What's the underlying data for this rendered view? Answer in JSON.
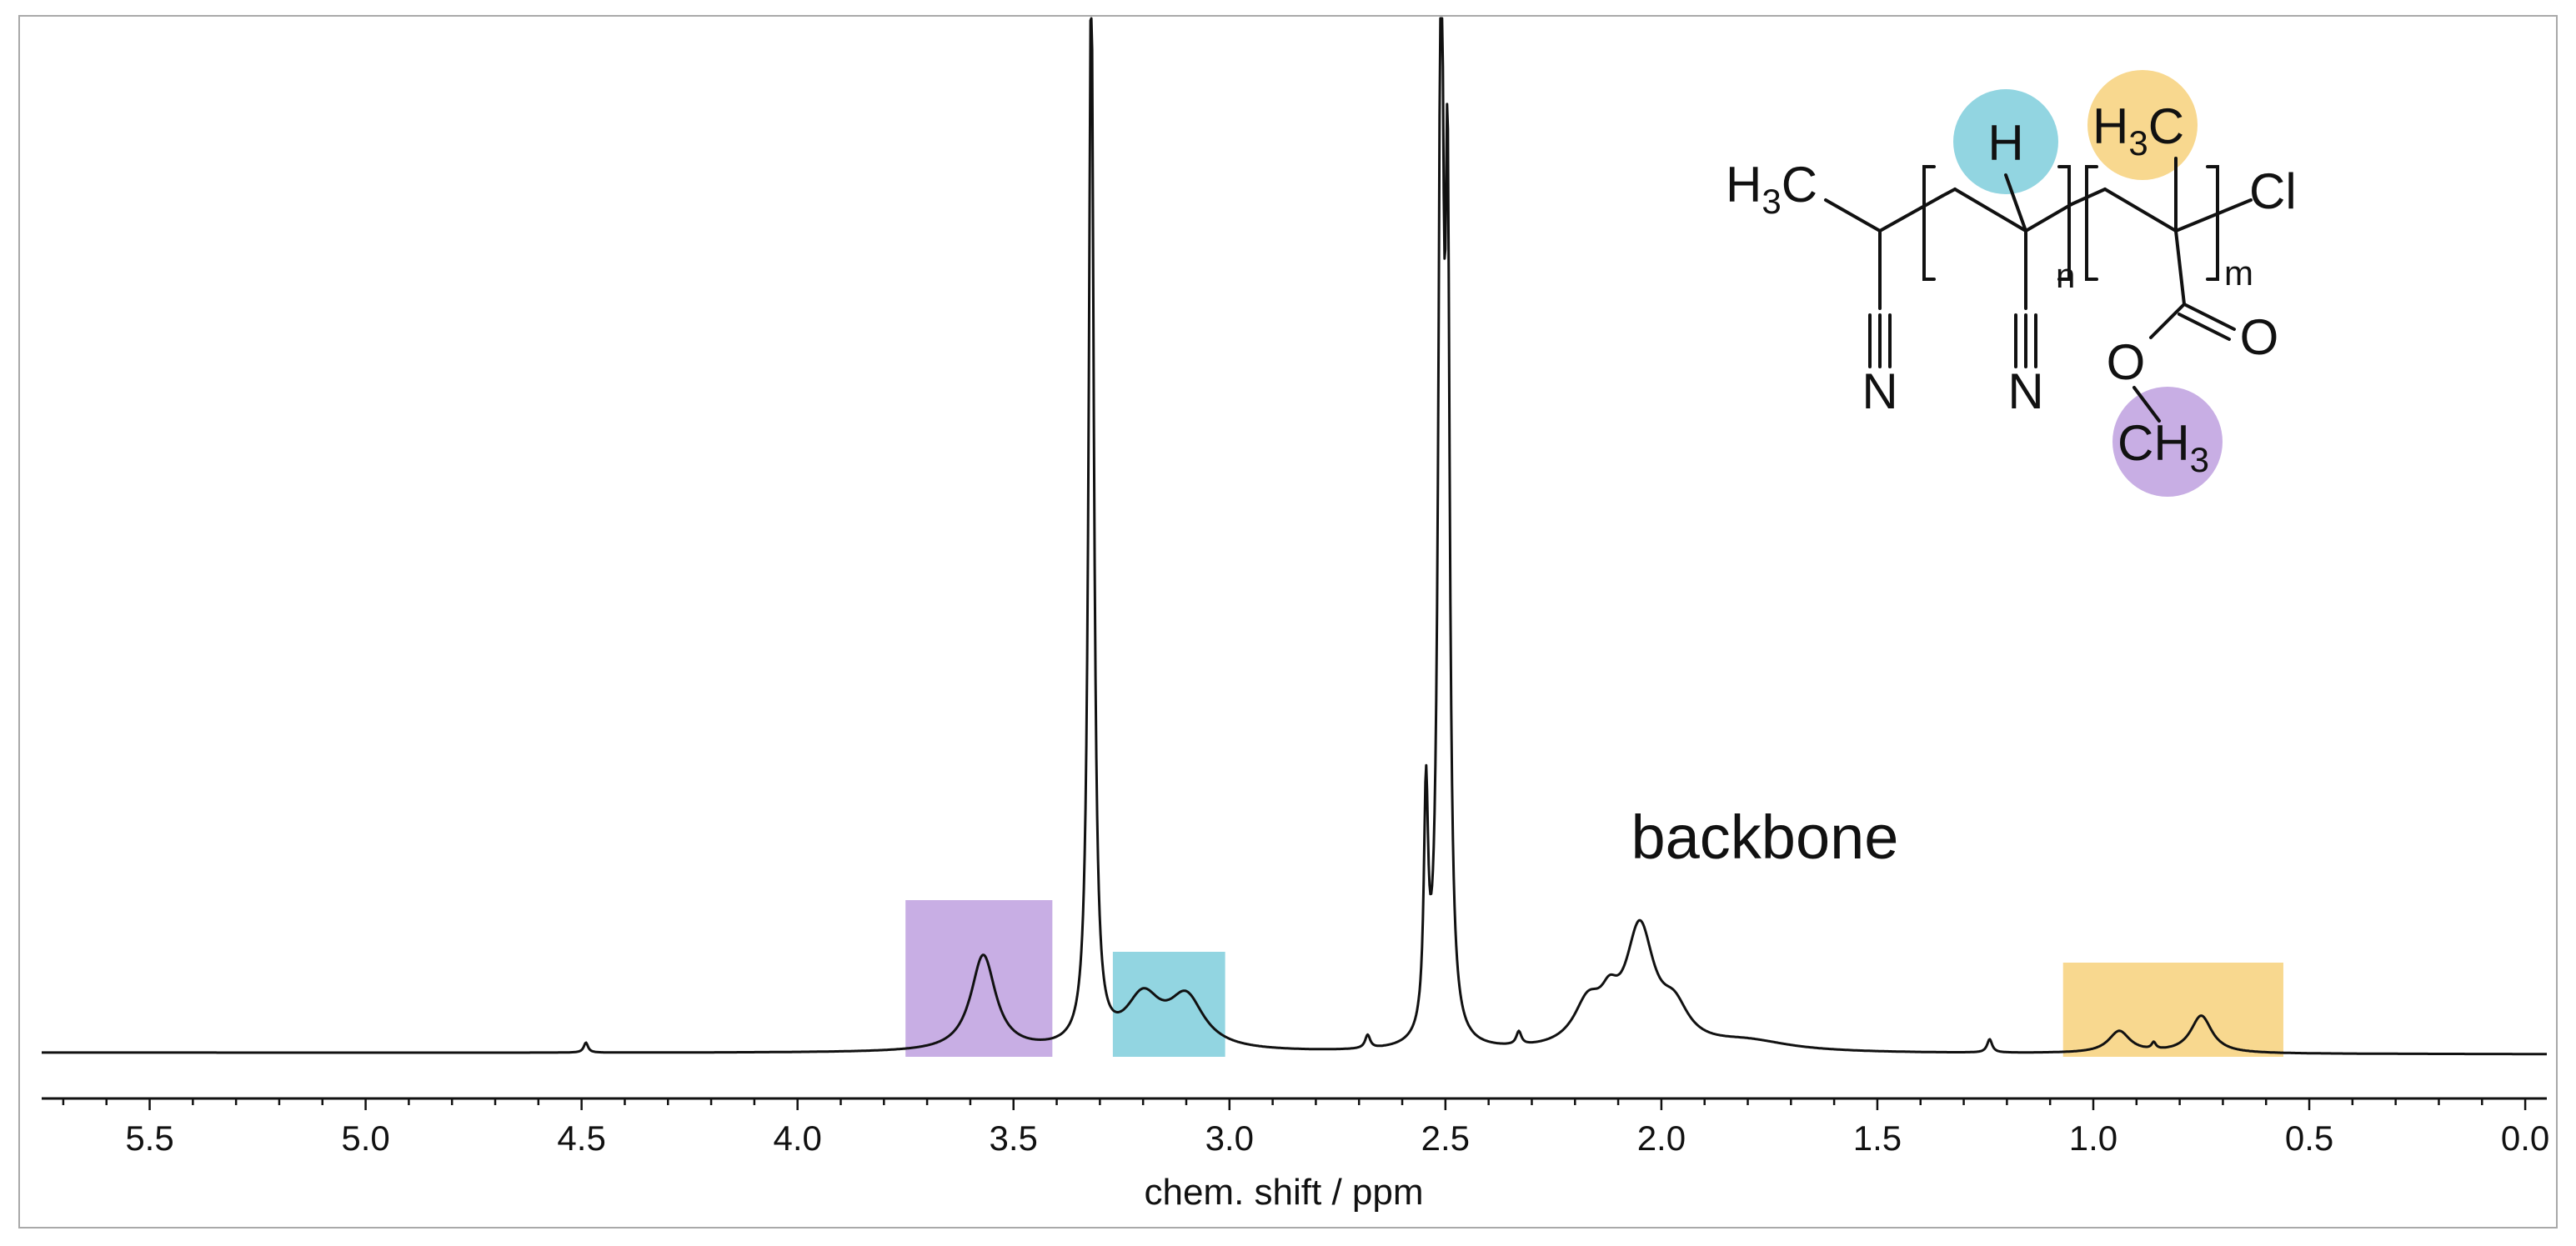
{
  "chart_data": {
    "type": "line",
    "x_axis": {
      "label": "chem. shift / ppm",
      "range": [
        5.75,
        -0.05
      ],
      "reversed": true,
      "ticks": [
        "5.5",
        "5.0",
        "4.5",
        "4.0",
        "3.5",
        "3.0",
        "2.5",
        "2.0",
        "1.5",
        "1.0",
        "0.5",
        "0.0"
      ],
      "minor_step": 0.1
    },
    "y_axis": {
      "visible": false,
      "range": [
        0,
        1
      ]
    },
    "grid": false,
    "series": [
      {
        "baseline": 0.0,
        "peaks": [
          {
            "center": 4.49,
            "height": 0.012,
            "width": 0.006
          },
          {
            "center": 3.57,
            "height": 0.115,
            "width": 0.035
          },
          {
            "center": 3.32,
            "height": 1.3,
            "width": 0.007
          },
          {
            "center": 3.2,
            "height": 0.06,
            "width": 0.05
          },
          {
            "center": 3.1,
            "height": 0.06,
            "width": 0.05
          },
          {
            "center": 2.68,
            "height": 0.016,
            "width": 0.007
          },
          {
            "center": 2.545,
            "height": 0.28,
            "width": 0.006
          },
          {
            "center": 2.51,
            "height": 1.3,
            "width": 0.007
          },
          {
            "center": 2.495,
            "height": 0.9,
            "width": 0.006
          },
          {
            "center": 2.33,
            "height": 0.016,
            "width": 0.007
          },
          {
            "center": 2.17,
            "height": 0.05,
            "width": 0.04
          },
          {
            "center": 2.12,
            "height": 0.035,
            "width": 0.025
          },
          {
            "center": 2.05,
            "height": 0.14,
            "width": 0.04
          },
          {
            "center": 1.97,
            "height": 0.04,
            "width": 0.04
          },
          {
            "center": 1.8,
            "height": 0.012,
            "width": 0.12
          },
          {
            "center": 1.24,
            "height": 0.016,
            "width": 0.007
          },
          {
            "center": 0.94,
            "height": 0.026,
            "width": 0.03
          },
          {
            "center": 0.86,
            "height": 0.008,
            "width": 0.006
          },
          {
            "center": 0.75,
            "height": 0.045,
            "width": 0.03
          }
        ]
      }
    ],
    "annotations": [
      {
        "text": "backbone",
        "x": 2.05,
        "y": 0.235
      }
    ],
    "highlight_regions": [
      {
        "x_from": 3.75,
        "x_to": 3.41,
        "y_to": 0.185,
        "color": "#c8aee4",
        "group": "purple"
      },
      {
        "x_from": 3.27,
        "x_to": 3.01,
        "y_to": 0.123,
        "color": "#92d5e1",
        "group": "cyan"
      },
      {
        "x_from": 1.07,
        "x_to": 0.56,
        "y_to": 0.11,
        "color": "#f8d88f",
        "group": "yellow"
      }
    ]
  },
  "structure": {
    "labels": {
      "h3c_left_main": "H",
      "h3c_left_sub": "3",
      "h3c_left_tail": "C",
      "n_left": "N",
      "h_atom": "H",
      "n_middle": "N",
      "subscript_n": "n",
      "h3c_right_main": "H",
      "h3c_right_sub": "3",
      "h3c_right_tail": "C",
      "cl": "Cl",
      "subscript_m": "m",
      "o_carbonyl": "O",
      "o_ester": "O",
      "ch3_main": "CH",
      "ch3_sub": "3"
    },
    "highlight_colors": {
      "h_atom": "#92d5e1",
      "h3c_right": "#f8d88f",
      "ch3": "#c8aee4"
    }
  }
}
